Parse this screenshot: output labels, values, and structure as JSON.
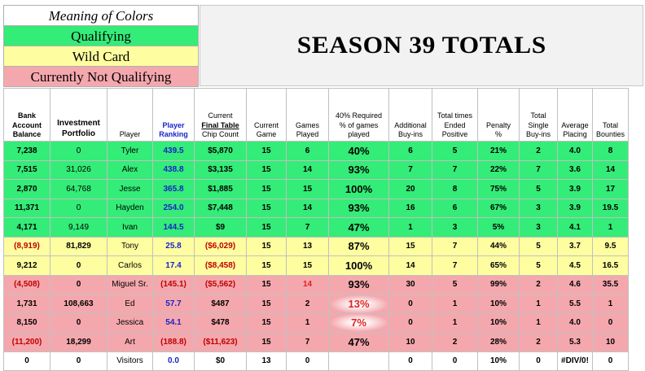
{
  "legend": {
    "title": "Meaning of Colors",
    "qualifying": "Qualifying",
    "wild_card": "Wild Card",
    "not_qualifying": "Currently Not Qualifying"
  },
  "banner_title": "SEASON 39 TOTALS",
  "colors": {
    "green": "#34ec78",
    "yellow": "#fefea0",
    "red": "#f4a8ae",
    "blue_text": "#1a23c8",
    "red_text": "#c00000"
  },
  "headers": {
    "bank": [
      "Bank",
      "Account",
      "Balance"
    ],
    "investment": [
      "Investment",
      "Portfolio"
    ],
    "player": "Player",
    "ranking": [
      "Player",
      "Ranking"
    ],
    "chip": [
      "Current",
      "Final Table",
      "Chip Count"
    ],
    "current_game": [
      "Current",
      "Game"
    ],
    "games_played": [
      "Games",
      "Played"
    ],
    "required": [
      "40% Required",
      "% of games",
      "played"
    ],
    "buyins": [
      "Additional",
      "Buy-ins"
    ],
    "ended_positive": [
      "Total times",
      "Ended",
      "Positive"
    ],
    "penalty": [
      "Penalty",
      "%"
    ],
    "single_buyins": [
      "Total",
      "Single",
      "Buy-ins"
    ],
    "avg_placing": [
      "Average",
      "Placing"
    ],
    "bounties": [
      "Total",
      "Bounties"
    ]
  },
  "rows": [
    {
      "status": "g",
      "bank": "7,238",
      "inv": "0",
      "player": "Tyler",
      "rank": "439.5",
      "chip": "$5,870",
      "cur": "15",
      "played": "6",
      "pct": "40%",
      "buy": "6",
      "pos": "5",
      "pen": "21%",
      "single": "2",
      "avg": "4.0",
      "bounty": "8"
    },
    {
      "status": "g",
      "bank": "7,515",
      "inv": "31,026",
      "player": "Alex",
      "rank": "438.8",
      "chip": "$3,135",
      "cur": "15",
      "played": "14",
      "pct": "93%",
      "buy": "7",
      "pos": "7",
      "pen": "22%",
      "single": "7",
      "avg": "3.6",
      "bounty": "14"
    },
    {
      "status": "g",
      "bank": "2,870",
      "inv": "64,768",
      "player": "Jesse",
      "rank": "365.8",
      "chip": "$1,885",
      "cur": "15",
      "played": "15",
      "pct": "100%",
      "buy": "20",
      "pos": "8",
      "pen": "75%",
      "single": "5",
      "avg": "3.9",
      "bounty": "17"
    },
    {
      "status": "g",
      "bank": "11,371",
      "inv": "0",
      "player": "Hayden",
      "rank": "254.0",
      "chip": "$7,448",
      "cur": "15",
      "played": "14",
      "pct": "93%",
      "buy": "16",
      "pos": "6",
      "pen": "67%",
      "single": "3",
      "avg": "3.9",
      "bounty": "19.5"
    },
    {
      "status": "g",
      "bank": "4,171",
      "inv": "9,149",
      "player": "Ivan",
      "rank": "144.5",
      "chip": "$9",
      "cur": "15",
      "played": "7",
      "pct": "47%",
      "buy": "1",
      "pos": "3",
      "pen": "5%",
      "single": "3",
      "avg": "4.1",
      "bounty": "1"
    },
    {
      "status": "y",
      "bank": "(8,919)",
      "inv": "81,829",
      "player": "Tony",
      "rank": "25.8",
      "chip": "($6,029)",
      "cur": "15",
      "played": "13",
      "pct": "87%",
      "buy": "15",
      "pos": "7",
      "pen": "44%",
      "single": "5",
      "avg": "3.7",
      "bounty": "9.5"
    },
    {
      "status": "y",
      "bank": "9,212",
      "inv": "0",
      "player": "Carlos",
      "rank": "17.4",
      "chip": "($8,458)",
      "cur": "15",
      "played": "15",
      "pct": "100%",
      "buy": "14",
      "pos": "7",
      "pen": "65%",
      "single": "5",
      "avg": "4.5",
      "bounty": "16.5"
    },
    {
      "status": "r",
      "bank": "(4,508)",
      "inv": "0",
      "player": "Miguel Sr.",
      "rank": "(145.1)",
      "chip": "($5,562)",
      "cur": "15",
      "played": "14",
      "pct": "93%",
      "buy": "30",
      "pos": "5",
      "pen": "99%",
      "single": "2",
      "avg": "4.6",
      "bounty": "35.5"
    },
    {
      "status": "r",
      "bank": "1,731",
      "inv": "108,663",
      "player": "Ed",
      "rank": "57.7",
      "chip": "$487",
      "cur": "15",
      "played": "2",
      "pct": "13%",
      "buy": "0",
      "pos": "1",
      "pen": "10%",
      "single": "1",
      "avg": "5.5",
      "bounty": "1"
    },
    {
      "status": "r",
      "bank": "8,150",
      "inv": "0",
      "player": "Jessica",
      "rank": "54.1",
      "chip": "$478",
      "cur": "15",
      "played": "1",
      "pct": "7%",
      "buy": "0",
      "pos": "1",
      "pen": "10%",
      "single": "1",
      "avg": "4.0",
      "bounty": "0"
    },
    {
      "status": "r",
      "bank": "(11,200)",
      "inv": "18,299",
      "player": "Art",
      "rank": "(188.8)",
      "chip": "($11,623)",
      "cur": "15",
      "played": "7",
      "pct": "47%",
      "buy": "10",
      "pos": "2",
      "pen": "28%",
      "single": "2",
      "avg": "5.3",
      "bounty": "10"
    },
    {
      "status": "w",
      "bank": "0",
      "inv": "0",
      "player": "Visitors",
      "rank": "0.0",
      "chip": "$0",
      "cur": "13",
      "played": "0",
      "pct": "",
      "buy": "0",
      "pos": "0",
      "pen": "10%",
      "single": "0",
      "avg": "#DIV/0!",
      "bounty": "0"
    }
  ]
}
